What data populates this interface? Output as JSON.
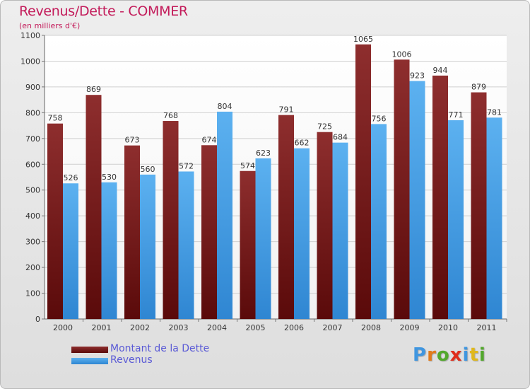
{
  "header": {
    "title": "Revenus/Dette - COMMER",
    "subtitle": "(en milliers d'€)"
  },
  "legend": {
    "items": [
      {
        "label": "Montant de la Dette",
        "color": "#6e1a1a"
      },
      {
        "label": "Revenus",
        "color": "#3f96e0"
      }
    ]
  },
  "logo": {
    "text": "Proxiti",
    "letters": [
      {
        "ch": "P",
        "color": "#3f96e0"
      },
      {
        "ch": "r",
        "color": "#e07b1c"
      },
      {
        "ch": "o",
        "color": "#52a82c"
      },
      {
        "ch": "x",
        "color": "#e02d1c"
      },
      {
        "ch": "i",
        "color": "#3f96e0"
      },
      {
        "ch": "t",
        "color": "#e0b81c"
      },
      {
        "ch": "i",
        "color": "#52a82c"
      }
    ]
  },
  "chart_data": {
    "type": "bar",
    "title": "Revenus/Dette - COMMER",
    "subtitle": "(en milliers d'€)",
    "categories": [
      "2000",
      "2001",
      "2002",
      "2003",
      "2004",
      "2005",
      "2006",
      "2007",
      "2008",
      "2009",
      "2010",
      "2011"
    ],
    "series": [
      {
        "name": "Montant de la Dette",
        "color": "#7a1c1c",
        "values": [
          758,
          869,
          673,
          768,
          674,
          574,
          791,
          725,
          1065,
          1006,
          944,
          879
        ]
      },
      {
        "name": "Revenus",
        "color": "#4ba3e8",
        "values": [
          526,
          530,
          560,
          572,
          804,
          623,
          662,
          684,
          756,
          923,
          771,
          781
        ]
      }
    ],
    "ylim": [
      0,
      1100
    ],
    "yticks": [
      0,
      100,
      200,
      300,
      400,
      500,
      600,
      700,
      800,
      900,
      1000,
      1100
    ],
    "grid": true,
    "legend_position": "bottom-left"
  }
}
